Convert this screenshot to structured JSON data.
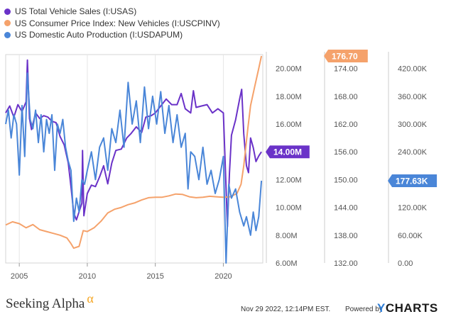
{
  "legend": [
    {
      "label": "US Total Vehicle Sales (I:USAS)",
      "color": "#6a32c8"
    },
    {
      "label": "US Consumer Price Index: New Vehicles (I:USCPINV)",
      "color": "#f5a26b"
    },
    {
      "label": "US Domestic Auto Production (I:USDAPUM)",
      "color": "#4a86d8"
    }
  ],
  "footer": {
    "brand": "Seeking Alpha",
    "brand_symbol": "α",
    "timestamp": "Nov 29 2022, 12:14PM EST.",
    "powered_by": "Powered by",
    "ycharts_y": "Y",
    "ycharts_rest": "CHARTS"
  },
  "chart_data": {
    "type": "line",
    "x_ticks": [
      "2005",
      "2010",
      "2015",
      "2020"
    ],
    "xlim": [
      2004.0,
      2022.9
    ],
    "axes": [
      {
        "id": "sales",
        "ticks": [
          "6.00M",
          "8.00M",
          "10.00M",
          "12.00M",
          "14.00M",
          "16.00M",
          "18.00M",
          "20.00M"
        ],
        "ylim": [
          6.0,
          21.0
        ]
      },
      {
        "id": "cpi",
        "ticks": [
          "132.00",
          "138.00",
          "144.00",
          "150.00",
          "156.00",
          "162.00",
          "168.00",
          "174.00"
        ],
        "ylim": [
          132.0,
          177.0
        ]
      },
      {
        "id": "production",
        "ticks": [
          "0.00",
          "60.00K",
          "120.00K",
          "180.00K",
          "240.00K",
          "300.00K",
          "360.00K",
          "420.00K"
        ],
        "ylim": [
          0,
          450
        ]
      }
    ],
    "series": [
      {
        "name": "US Total Vehicle Sales (I:USAS)",
        "axis": "sales",
        "color": "#6a32c8",
        "last_label": "14.00M",
        "points": [
          [
            2004.0,
            16.8
          ],
          [
            2004.3,
            17.3
          ],
          [
            2004.6,
            16.5
          ],
          [
            2004.9,
            17.4
          ],
          [
            2005.2,
            16.9
          ],
          [
            2005.5,
            17.6
          ],
          [
            2005.6,
            20.6
          ],
          [
            2005.75,
            16.4
          ],
          [
            2005.9,
            15.6
          ],
          [
            2006.2,
            16.8
          ],
          [
            2006.5,
            16.4
          ],
          [
            2006.8,
            16.6
          ],
          [
            2007.1,
            16.5
          ],
          [
            2007.4,
            16.2
          ],
          [
            2007.7,
            16.1
          ],
          [
            2008.0,
            15.1
          ],
          [
            2008.3,
            14.5
          ],
          [
            2008.6,
            13.2
          ],
          [
            2008.8,
            11.5
          ],
          [
            2009.0,
            9.6
          ],
          [
            2009.2,
            9.1
          ],
          [
            2009.4,
            9.7
          ],
          [
            2009.6,
            10.3
          ],
          [
            2009.65,
            14.1
          ],
          [
            2009.75,
            9.4
          ],
          [
            2010.0,
            11.0
          ],
          [
            2010.3,
            11.6
          ],
          [
            2010.6,
            11.5
          ],
          [
            2010.9,
            12.2
          ],
          [
            2011.2,
            13.0
          ],
          [
            2011.5,
            11.7
          ],
          [
            2011.8,
            13.2
          ],
          [
            2012.1,
            14.1
          ],
          [
            2012.5,
            14.2
          ],
          [
            2012.9,
            15.0
          ],
          [
            2013.2,
            15.3
          ],
          [
            2013.6,
            15.8
          ],
          [
            2014.0,
            15.4
          ],
          [
            2014.3,
            16.5
          ],
          [
            2014.7,
            16.6
          ],
          [
            2015.0,
            16.8
          ],
          [
            2015.4,
            17.3
          ],
          [
            2015.8,
            17.8
          ],
          [
            2016.2,
            17.4
          ],
          [
            2016.6,
            17.4
          ],
          [
            2016.9,
            18.2
          ],
          [
            2017.2,
            17.1
          ],
          [
            2017.6,
            16.8
          ],
          [
            2017.8,
            18.4
          ],
          [
            2018.0,
            17.2
          ],
          [
            2018.4,
            17.3
          ],
          [
            2018.8,
            17.4
          ],
          [
            2019.2,
            16.8
          ],
          [
            2019.6,
            17.1
          ],
          [
            2020.0,
            16.8
          ],
          [
            2020.2,
            11.4
          ],
          [
            2020.3,
            8.6
          ],
          [
            2020.45,
            12.5
          ],
          [
            2020.6,
            15.2
          ],
          [
            2020.9,
            16.3
          ],
          [
            2021.2,
            17.8
          ],
          [
            2021.35,
            18.5
          ],
          [
            2021.5,
            15.3
          ],
          [
            2021.7,
            13.0
          ],
          [
            2021.85,
            12.5
          ],
          [
            2022.0,
            15.0
          ],
          [
            2022.2,
            14.3
          ],
          [
            2022.4,
            13.3
          ],
          [
            2022.6,
            13.7
          ],
          [
            2022.8,
            14.0
          ]
        ]
      },
      {
        "name": "US Consumer Price Index: New Vehicles (I:USCPINV)",
        "axis": "cpi",
        "color": "#f5a26b",
        "last_label": "176.70",
        "points": [
          [
            2004.0,
            140.2
          ],
          [
            2004.5,
            140.9
          ],
          [
            2005.0,
            140.5
          ],
          [
            2005.5,
            139.6
          ],
          [
            2006.0,
            140.3
          ],
          [
            2006.5,
            139.2
          ],
          [
            2007.0,
            138.8
          ],
          [
            2007.5,
            138.4
          ],
          [
            2008.0,
            138.0
          ],
          [
            2008.5,
            137.4
          ],
          [
            2008.8,
            136.2
          ],
          [
            2009.0,
            135.2
          ],
          [
            2009.4,
            135.6
          ],
          [
            2009.7,
            139.0
          ],
          [
            2010.0,
            138.8
          ],
          [
            2010.5,
            139.6
          ],
          [
            2011.0,
            141.0
          ],
          [
            2011.5,
            142.8
          ],
          [
            2012.0,
            143.6
          ],
          [
            2012.5,
            144.0
          ],
          [
            2013.0,
            144.6
          ],
          [
            2013.5,
            145.0
          ],
          [
            2014.0,
            145.6
          ],
          [
            2014.5,
            146.1
          ],
          [
            2015.0,
            146.2
          ],
          [
            2015.5,
            146.2
          ],
          [
            2016.0,
            146.5
          ],
          [
            2016.5,
            146.9
          ],
          [
            2017.0,
            146.8
          ],
          [
            2017.5,
            146.3
          ],
          [
            2018.0,
            146.1
          ],
          [
            2018.5,
            146.2
          ],
          [
            2019.0,
            146.4
          ],
          [
            2019.5,
            146.3
          ],
          [
            2020.0,
            146.2
          ],
          [
            2020.5,
            146.3
          ],
          [
            2021.0,
            147.0
          ],
          [
            2021.3,
            149.0
          ],
          [
            2021.5,
            153.0
          ],
          [
            2021.8,
            161.0
          ],
          [
            2022.0,
            166.0
          ],
          [
            2022.3,
            170.0
          ],
          [
            2022.6,
            174.0
          ],
          [
            2022.8,
            176.7
          ]
        ]
      },
      {
        "name": "US Domestic Auto Production (I:USDAPUM)",
        "axis": "production",
        "color": "#4a86d8",
        "last_label": "177.63K",
        "points": [
          [
            2004.0,
            300
          ],
          [
            2004.2,
            330
          ],
          [
            2004.4,
            270
          ],
          [
            2004.6,
            320
          ],
          [
            2004.8,
            300
          ],
          [
            2005.0,
            190
          ],
          [
            2005.2,
            340
          ],
          [
            2005.4,
            230
          ],
          [
            2005.6,
            410
          ],
          [
            2005.8,
            310
          ],
          [
            2006.0,
            290
          ],
          [
            2006.2,
            330
          ],
          [
            2006.4,
            260
          ],
          [
            2006.6,
            320
          ],
          [
            2006.8,
            240
          ],
          [
            2007.0,
            310
          ],
          [
            2007.2,
            280
          ],
          [
            2007.4,
            320
          ],
          [
            2007.6,
            200
          ],
          [
            2007.8,
            300
          ],
          [
            2008.0,
            280
          ],
          [
            2008.2,
            310
          ],
          [
            2008.4,
            250
          ],
          [
            2008.6,
            220
          ],
          [
            2008.8,
            200
          ],
          [
            2009.0,
            90
          ],
          [
            2009.2,
            140
          ],
          [
            2009.4,
            110
          ],
          [
            2009.6,
            180
          ],
          [
            2009.8,
            170
          ],
          [
            2010.0,
            200
          ],
          [
            2010.3,
            240
          ],
          [
            2010.6,
            180
          ],
          [
            2010.9,
            250
          ],
          [
            2011.2,
            270
          ],
          [
            2011.5,
            200
          ],
          [
            2011.8,
            290
          ],
          [
            2012.1,
            260
          ],
          [
            2012.4,
            330
          ],
          [
            2012.7,
            250
          ],
          [
            2013.0,
            390
          ],
          [
            2013.3,
            300
          ],
          [
            2013.6,
            350
          ],
          [
            2013.9,
            260
          ],
          [
            2014.2,
            380
          ],
          [
            2014.5,
            290
          ],
          [
            2014.8,
            360
          ],
          [
            2015.1,
            300
          ],
          [
            2015.4,
            370
          ],
          [
            2015.7,
            280
          ],
          [
            2016.0,
            340
          ],
          [
            2016.3,
            260
          ],
          [
            2016.6,
            320
          ],
          [
            2016.9,
            250
          ],
          [
            2017.2,
            280
          ],
          [
            2017.4,
            160
          ],
          [
            2017.6,
            240
          ],
          [
            2017.9,
            230
          ],
          [
            2018.2,
            180
          ],
          [
            2018.5,
            250
          ],
          [
            2018.8,
            170
          ],
          [
            2019.1,
            200
          ],
          [
            2019.4,
            150
          ],
          [
            2019.7,
            180
          ],
          [
            2020.0,
            230
          ],
          [
            2020.2,
            0
          ],
          [
            2020.4,
            170
          ],
          [
            2020.6,
            140
          ],
          [
            2020.9,
            160
          ],
          [
            2021.2,
            110
          ],
          [
            2021.5,
            80
          ],
          [
            2021.7,
            100
          ],
          [
            2022.0,
            60
          ],
          [
            2022.2,
            110
          ],
          [
            2022.4,
            70
          ],
          [
            2022.6,
            100
          ],
          [
            2022.8,
            177.63
          ]
        ]
      }
    ]
  }
}
